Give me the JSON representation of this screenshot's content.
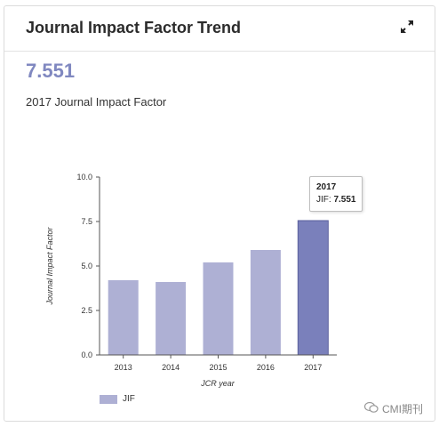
{
  "panel": {
    "title": "Journal Impact Factor Trend",
    "value": "7.551",
    "subtitle": "2017 Journal Impact Factor"
  },
  "tooltip": {
    "year": "2017",
    "label": "JIF:",
    "value": "7.551"
  },
  "watermark": {
    "text": "CMI期刊"
  },
  "colors": {
    "bar": "#aeb0d4",
    "bar_highlight": "#7a80bb",
    "value_text": "#8088c0"
  },
  "chart_data": {
    "type": "bar",
    "categories": [
      "2013",
      "2014",
      "2015",
      "2016",
      "2017"
    ],
    "series": [
      {
        "name": "JIF",
        "values": [
          4.2,
          4.1,
          5.2,
          5.9,
          7.551
        ]
      }
    ],
    "highlight_index": 4,
    "xlabel": "JCR year",
    "ylabel": "Journal Impact Factor",
    "ylim": [
      0,
      10
    ],
    "yticks": [
      "0.0",
      "2.5",
      "5.0",
      "7.5",
      "10.0"
    ],
    "grid": false,
    "legend": "bottom-left"
  }
}
